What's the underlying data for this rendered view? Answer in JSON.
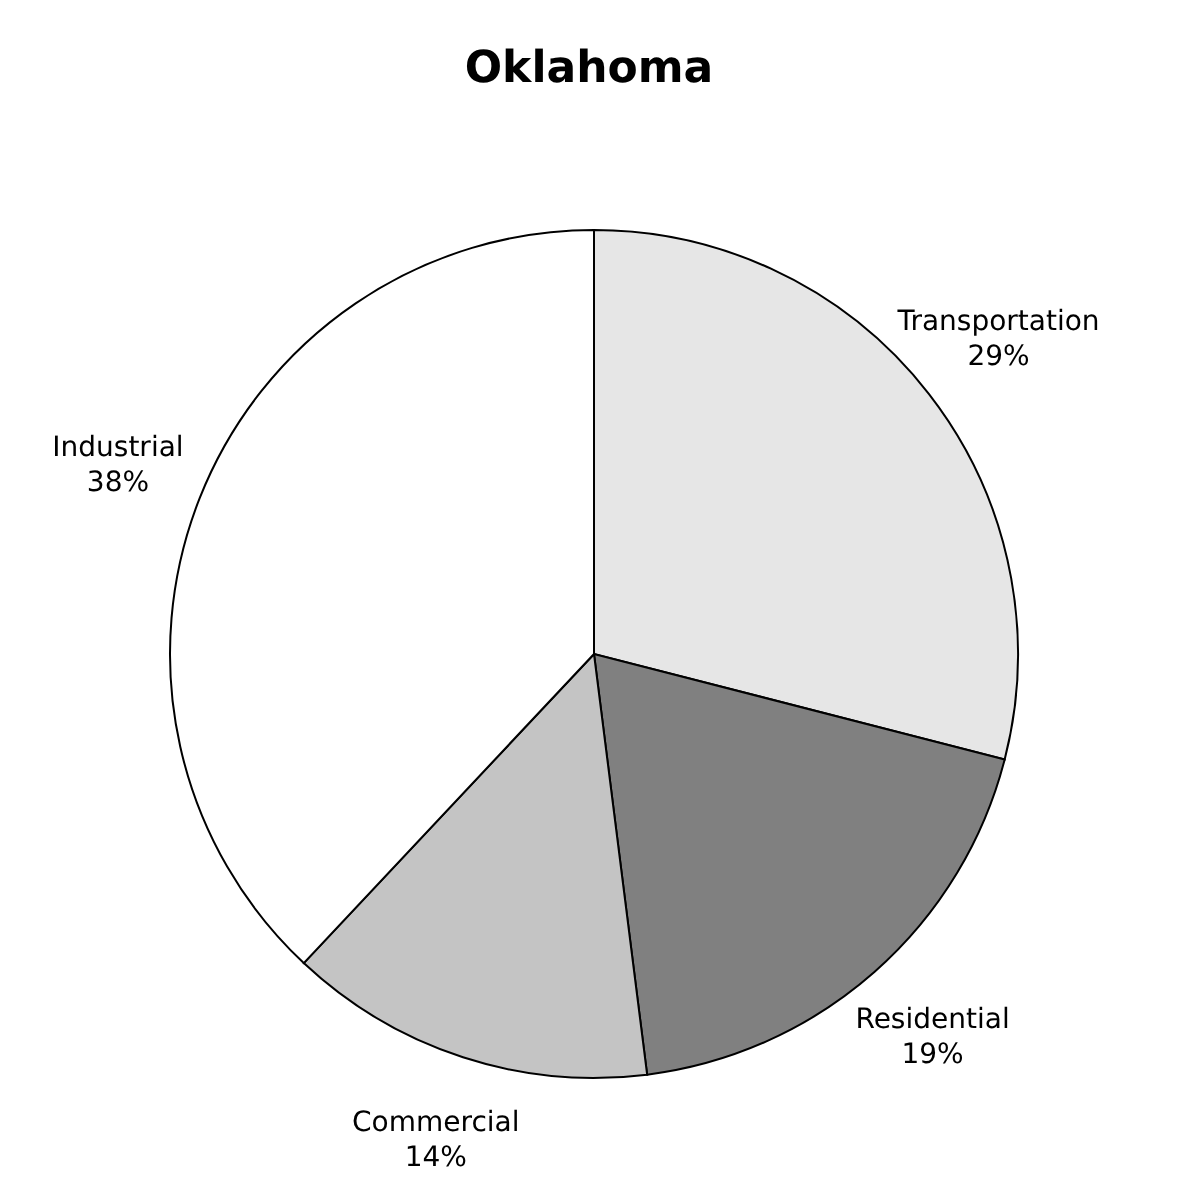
{
  "chart_data": {
    "type": "pie",
    "title": "Oklahoma",
    "categories": [
      "Transportation",
      "Residential",
      "Commercial",
      "Industrial"
    ],
    "values": [
      29,
      19,
      14,
      38
    ],
    "colors": [
      "#e6e6e6",
      "#808080",
      "#c4c4c4",
      "#ffffff"
    ],
    "value_labels": [
      "29%",
      "19%",
      "14%",
      "38%"
    ],
    "legend": false
  }
}
